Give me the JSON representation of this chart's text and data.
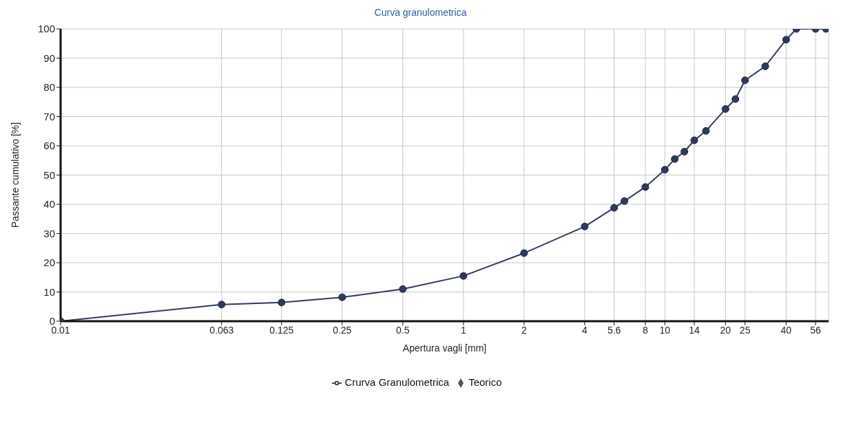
{
  "chart_data": {
    "type": "line",
    "title": "Curva granulometrica",
    "xlabel": "Apertura vagli [mm]",
    "ylabel": "Passante cumulativo [%]",
    "x": [
      0.01,
      0.063,
      0.125,
      0.25,
      0.5,
      1,
      2,
      4,
      5.6,
      6.3,
      8,
      10,
      11.2,
      12.5,
      14,
      16,
      20,
      22.4,
      25,
      31.5,
      40,
      45,
      56,
      63
    ],
    "series": [
      {
        "name": "Crurva Granulometrica",
        "color": "#2e3a5c",
        "marker": "circle",
        "line_style": "solid",
        "values": [
          0,
          5.7,
          6.4,
          8.2,
          11,
          15.5,
          23.3,
          32.4,
          38.8,
          41.1,
          45.9,
          51.8,
          55.5,
          58,
          61.9,
          65.1,
          72.6,
          76,
          82.4,
          87.2,
          96.3,
          100,
          100,
          100
        ]
      },
      {
        "name": "Teorico",
        "color": "#555555",
        "marker": "diamond",
        "line_style": "dashed",
        "values": [
          null,
          null,
          null,
          null,
          null,
          null,
          null,
          null,
          null,
          null,
          null,
          null,
          null,
          null,
          null,
          null,
          null,
          null,
          null,
          null,
          null,
          null,
          null,
          null
        ]
      }
    ],
    "log": "x",
    "xlim": [
      0.01,
      65
    ],
    "xticks": [
      0.01,
      0.063,
      0.125,
      0.25,
      0.5,
      1,
      2,
      4,
      5.6,
      8,
      10,
      14,
      20,
      25,
      40,
      56
    ],
    "ylim": [
      0,
      100
    ],
    "yticks": [
      0,
      10,
      20,
      30,
      40,
      50,
      60,
      70,
      80,
      90,
      100
    ],
    "grid": true,
    "legend": "bottom"
  }
}
